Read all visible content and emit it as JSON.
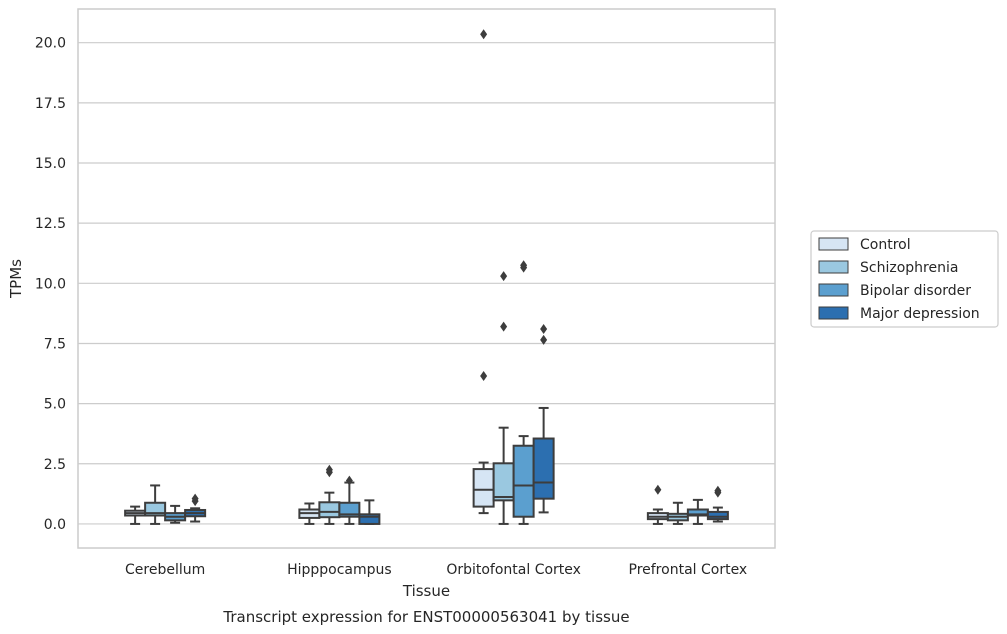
{
  "chart_data": {
    "type": "box",
    "xlabel": "Tissue",
    "ylabel": "TPMs",
    "caption": "Transcript expression for ENST00000563041 by tissue",
    "ylim": [
      -1.0,
      21.4
    ],
    "yticks": [
      "0.0",
      "2.5",
      "5.0",
      "7.5",
      "10.0",
      "12.5",
      "15.0",
      "17.5",
      "20.0"
    ],
    "grid": true,
    "legend_placement": "right",
    "categories": [
      "Cerebellum",
      "Hipppocampus",
      "Orbitofontal Cortex",
      "Prefrontal Cortex"
    ],
    "series": [
      {
        "name": "Control",
        "color": "#d6e5f4",
        "boxes": [
          {
            "whislo": 0.0,
            "q1": 0.35,
            "med": 0.45,
            "q3": 0.55,
            "whishi": 0.72,
            "fliers": []
          },
          {
            "whislo": 0.0,
            "q1": 0.25,
            "med": 0.45,
            "q3": 0.6,
            "whishi": 0.85,
            "fliers": []
          },
          {
            "whislo": 0.45,
            "q1": 0.72,
            "med": 1.42,
            "q3": 2.28,
            "whishi": 2.55,
            "fliers": [
              6.15,
              20.35
            ]
          },
          {
            "whislo": 0.0,
            "q1": 0.2,
            "med": 0.3,
            "q3": 0.45,
            "whishi": 0.6,
            "fliers": [
              1.42
            ]
          }
        ]
      },
      {
        "name": "Schizophrenia",
        "color": "#9ac8e0",
        "boxes": [
          {
            "whislo": 0.0,
            "q1": 0.35,
            "med": 0.45,
            "q3": 0.88,
            "whishi": 1.6,
            "fliers": []
          },
          {
            "whislo": 0.0,
            "q1": 0.28,
            "med": 0.5,
            "q3": 0.9,
            "whishi": 1.3,
            "fliers": [
              2.15,
              2.25
            ]
          },
          {
            "whislo": 0.0,
            "q1": 0.98,
            "med": 1.12,
            "q3": 2.52,
            "whishi": 4.0,
            "fliers": [
              8.2,
              10.3
            ]
          },
          {
            "whislo": 0.0,
            "q1": 0.15,
            "med": 0.3,
            "q3": 0.42,
            "whishi": 0.88,
            "fliers": []
          }
        ]
      },
      {
        "name": "Bipolar disorder",
        "color": "#5b9fcf",
        "boxes": [
          {
            "whislo": 0.05,
            "q1": 0.15,
            "med": 0.3,
            "q3": 0.45,
            "whishi": 0.75,
            "fliers": []
          },
          {
            "whislo": 0.0,
            "q1": 0.3,
            "med": 0.4,
            "q3": 0.88,
            "whishi": 1.72,
            "fliers": [
              1.8
            ]
          },
          {
            "whislo": 0.0,
            "q1": 0.3,
            "med": 1.6,
            "q3": 3.25,
            "whishi": 3.65,
            "fliers": [
              10.65,
              10.75
            ]
          },
          {
            "whislo": 0.0,
            "q1": 0.35,
            "med": 0.4,
            "q3": 0.6,
            "whishi": 1.0,
            "fliers": []
          }
        ]
      },
      {
        "name": "Major depression",
        "color": "#2c6fb0",
        "boxes": [
          {
            "whislo": 0.1,
            "q1": 0.32,
            "med": 0.45,
            "q3": 0.58,
            "whishi": 0.65,
            "fliers": [
              0.95,
              1.05
            ]
          },
          {
            "whislo": 0.0,
            "q1": 0.0,
            "med": 0.3,
            "q3": 0.4,
            "whishi": 0.98,
            "fliers": []
          },
          {
            "whislo": 0.48,
            "q1": 1.05,
            "med": 1.72,
            "q3": 3.55,
            "whishi": 4.82,
            "fliers": [
              7.65,
              8.1
            ]
          },
          {
            "whislo": 0.1,
            "q1": 0.2,
            "med": 0.3,
            "q3": 0.5,
            "whishi": 0.68,
            "fliers": [
              1.3,
              1.38
            ]
          }
        ]
      }
    ]
  }
}
